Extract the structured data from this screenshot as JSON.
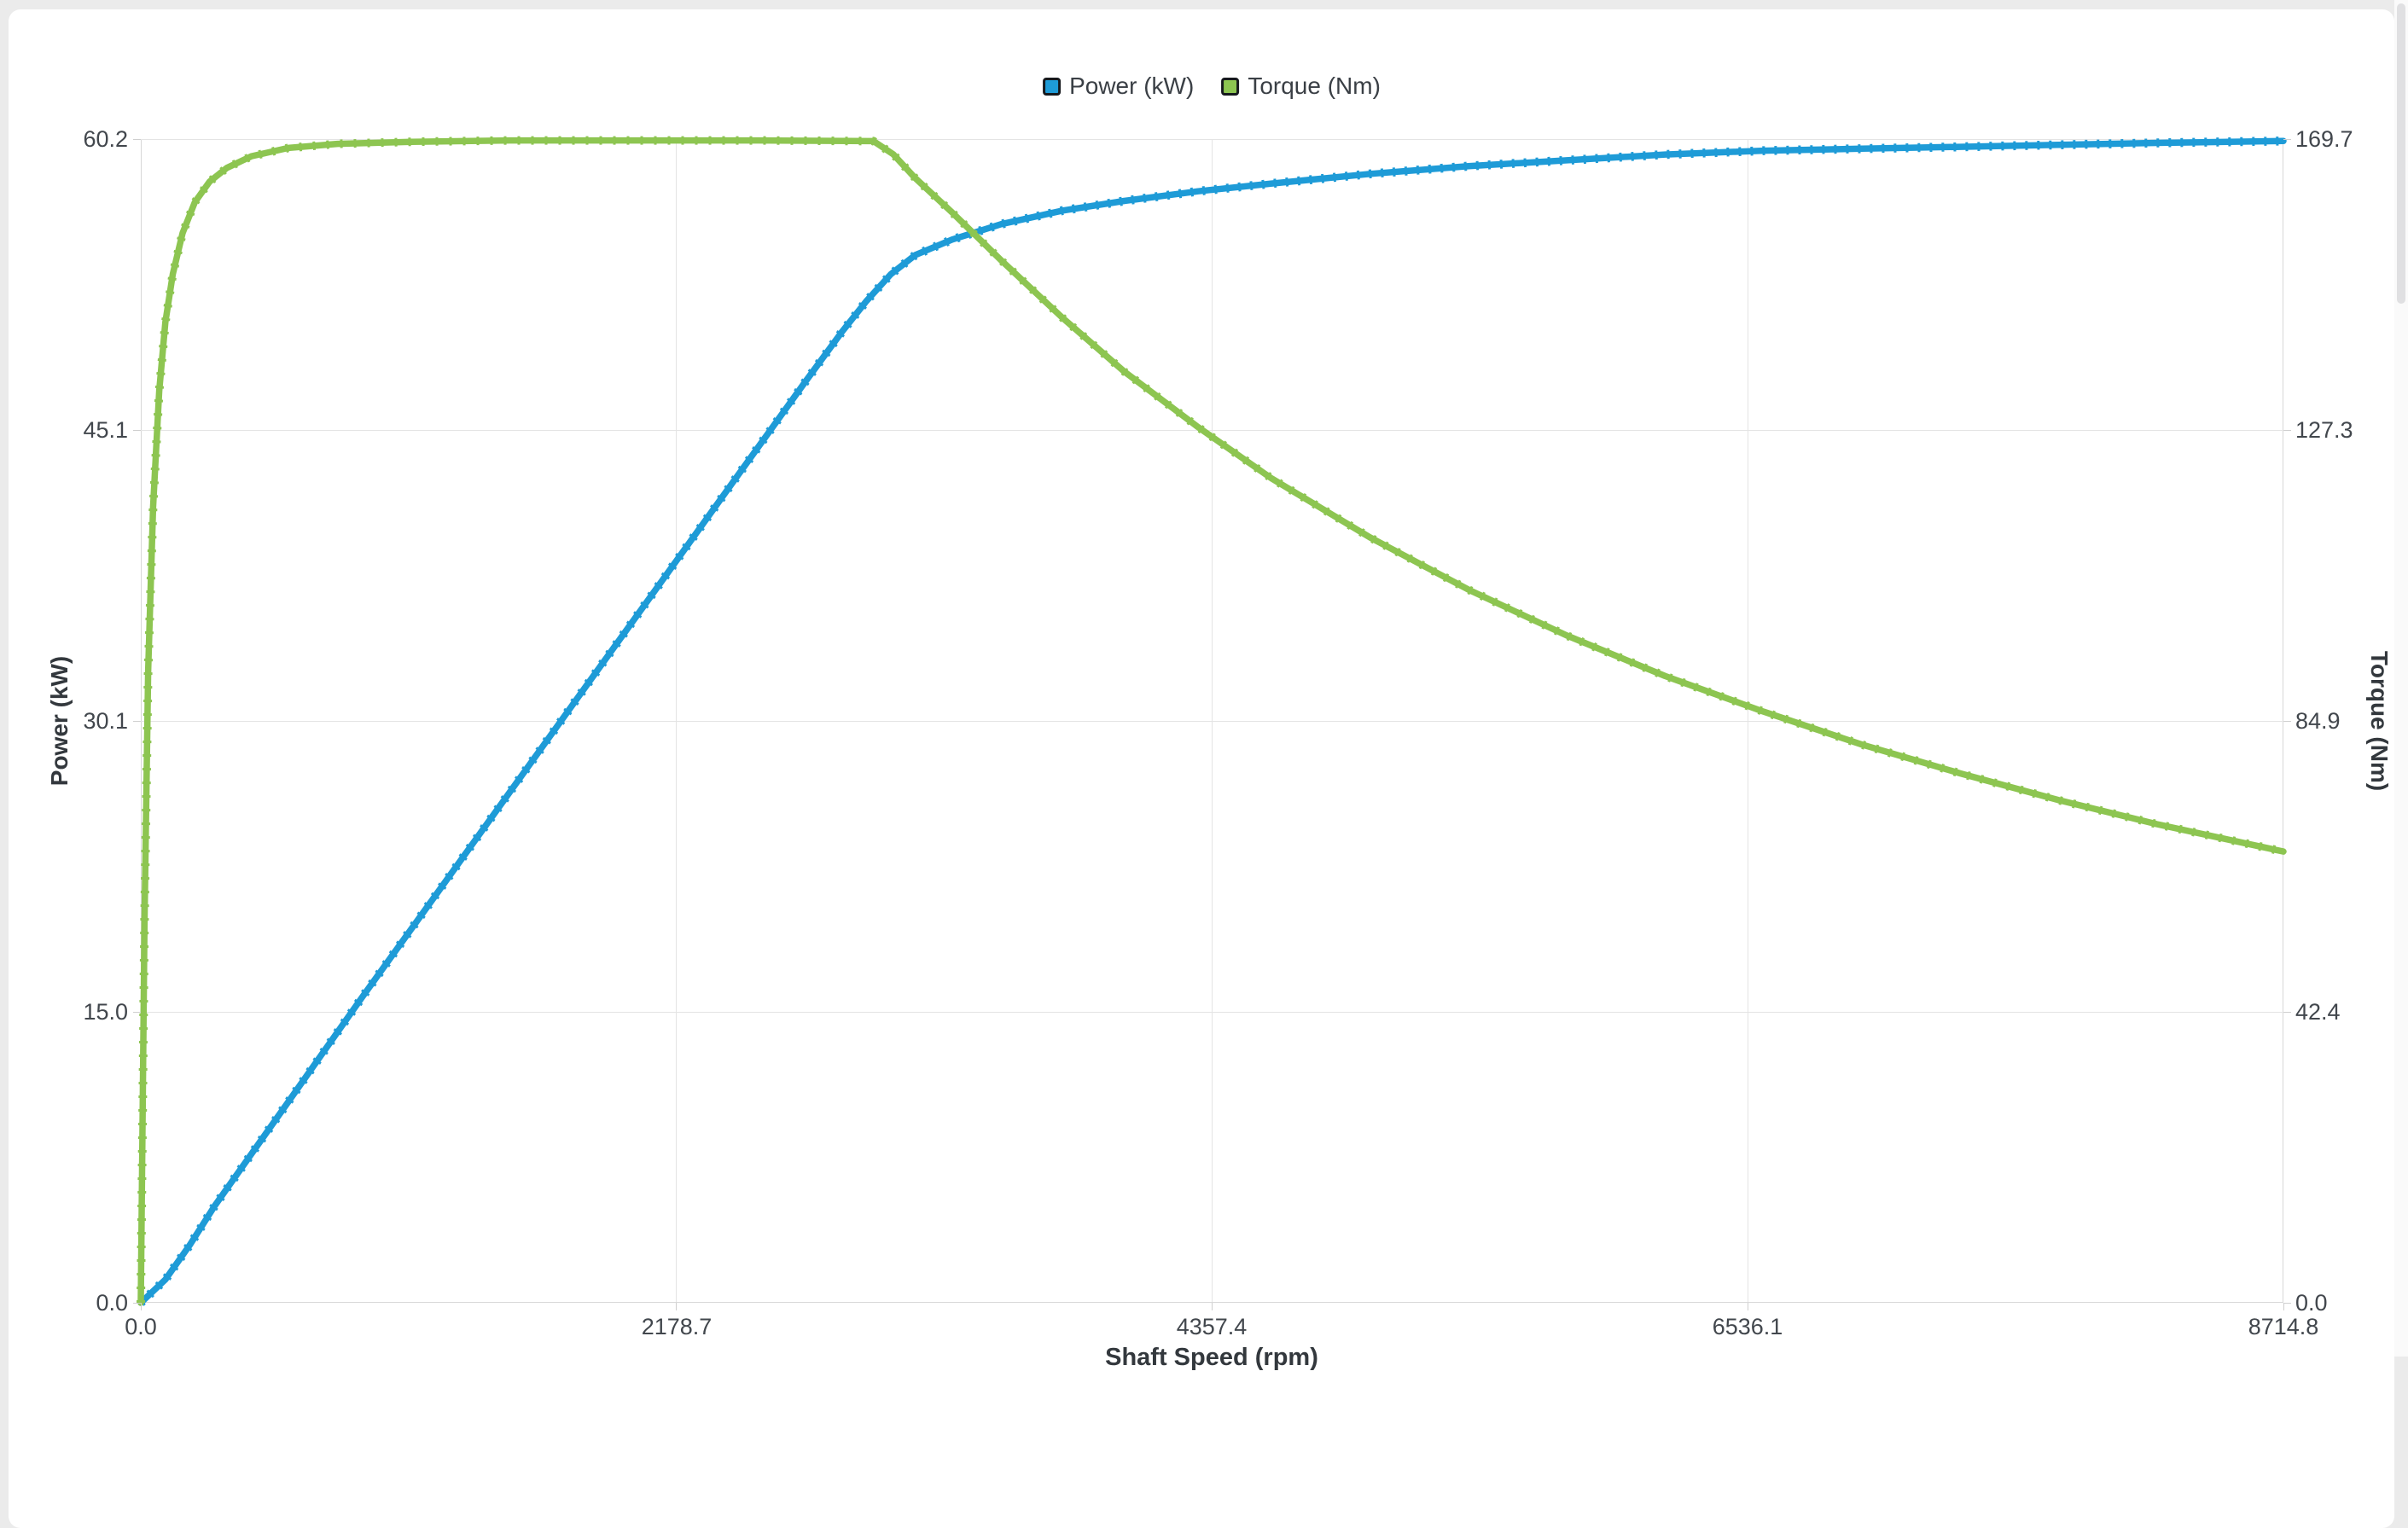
{
  "page": {
    "background": "#ebebeb",
    "card_background": "#ffffff"
  },
  "chart_data": {
    "type": "line",
    "title": "",
    "xlabel": "Shaft Speed (rpm)",
    "ylabel_left": "Power (kW)",
    "ylabel_right": "Torque (Nm)",
    "xlim": [
      0,
      8714.8
    ],
    "ylim_left": [
      0,
      60.2
    ],
    "ylim_right": [
      0,
      169.7
    ],
    "x_ticks": [
      "0.0",
      "2178.7",
      "4357.4",
      "6536.1",
      "8714.8"
    ],
    "y_left_ticks": [
      "0.0",
      "15.0",
      "30.1",
      "45.1",
      "60.2"
    ],
    "y_right_ticks": [
      "0.0",
      "42.4",
      "84.9",
      "127.3",
      "169.7"
    ],
    "grid": true,
    "legend_position": "top-center",
    "series": [
      {
        "name": "Power (kW)",
        "axis": "left",
        "color": "#1e9bd7",
        "points": [
          [
            0,
            0
          ],
          [
            100,
            1.2
          ],
          [
            200,
            3.0
          ],
          [
            300,
            5.0
          ],
          [
            600,
            10.4
          ],
          [
            900,
            15.8
          ],
          [
            1200,
            21.1
          ],
          [
            1500,
            26.4
          ],
          [
            1800,
            31.7
          ],
          [
            2100,
            37.0
          ],
          [
            2400,
            42.3
          ],
          [
            2700,
            47.6
          ],
          [
            2850,
            50.2
          ],
          [
            2950,
            51.8
          ],
          [
            3050,
            53.2
          ],
          [
            3150,
            54.2
          ],
          [
            3300,
            55.0
          ],
          [
            3500,
            55.8
          ],
          [
            3750,
            56.5
          ],
          [
            4000,
            57.0
          ],
          [
            4300,
            57.5
          ],
          [
            4600,
            57.9
          ],
          [
            5000,
            58.4
          ],
          [
            5400,
            58.8
          ],
          [
            5800,
            59.1
          ],
          [
            6200,
            59.4
          ],
          [
            6600,
            59.6
          ],
          [
            7000,
            59.7
          ],
          [
            7400,
            59.8
          ],
          [
            7800,
            59.9
          ],
          [
            8200,
            60.0
          ],
          [
            8714.8,
            60.1
          ]
        ]
      },
      {
        "name": "Torque (Nm)",
        "axis": "right",
        "color": "#8dc551",
        "points": [
          [
            0,
            0
          ],
          [
            15,
            55
          ],
          [
            30,
            92
          ],
          [
            50,
            116
          ],
          [
            75,
            133
          ],
          [
            100,
            143
          ],
          [
            130,
            150
          ],
          [
            170,
            156
          ],
          [
            220,
            160.5
          ],
          [
            280,
            163.5
          ],
          [
            350,
            165.5
          ],
          [
            450,
            167.2
          ],
          [
            600,
            168.4
          ],
          [
            800,
            169.0
          ],
          [
            1100,
            169.3
          ],
          [
            1500,
            169.5
          ],
          [
            2500,
            169.5
          ],
          [
            2980,
            169.4
          ],
          [
            3060,
            167.5
          ],
          [
            3150,
            164.0
          ],
          [
            3300,
            159.0
          ],
          [
            3500,
            152.0
          ],
          [
            3750,
            143.6
          ],
          [
            4000,
            135.8
          ],
          [
            4300,
            127.7
          ],
          [
            4600,
            120.2
          ],
          [
            5000,
            111.6
          ],
          [
            5400,
            104.0
          ],
          [
            5800,
            97.3
          ],
          [
            6200,
            91.4
          ],
          [
            6600,
            86.2
          ],
          [
            7000,
            81.4
          ],
          [
            7400,
            77.2
          ],
          [
            7800,
            73.3
          ],
          [
            8200,
            69.8
          ],
          [
            8714.8,
            65.8
          ]
        ]
      }
    ]
  }
}
